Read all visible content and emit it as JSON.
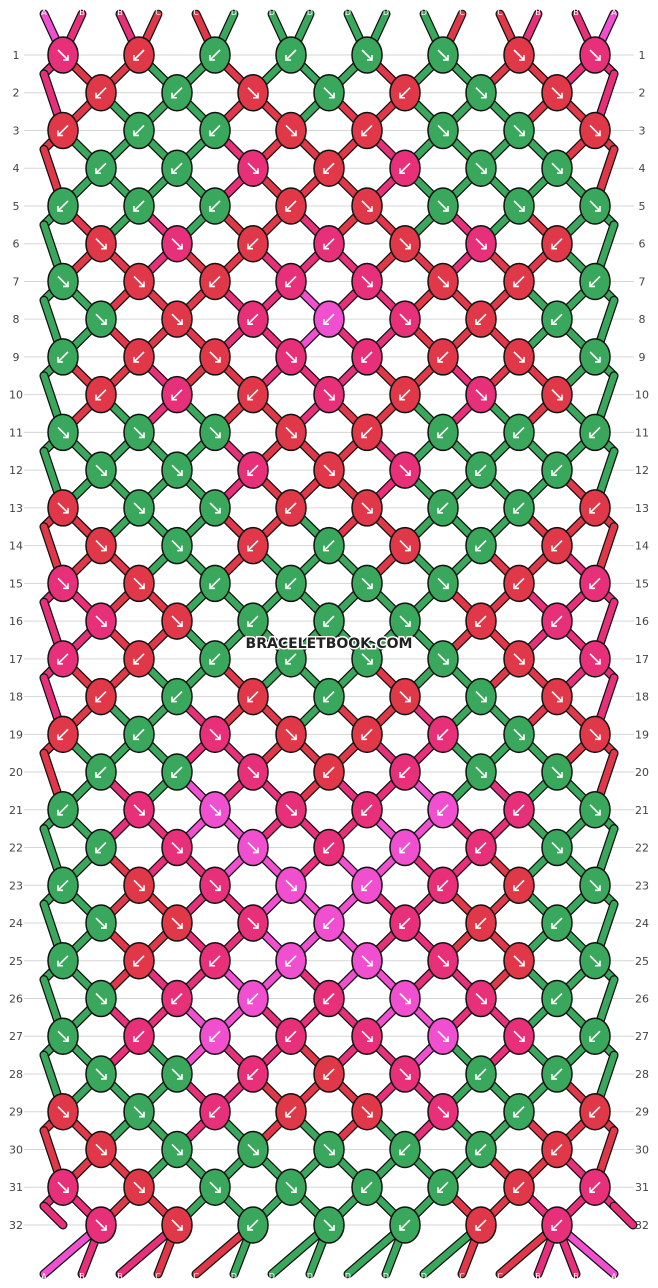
{
  "watermark": "BRACELETBOOK.COM",
  "colors": {
    "A": "#f050d0",
    "B": "#e8307a",
    "C": "#e03848",
    "D": "#3aa85c",
    "outline": "#111111",
    "grid": "#d6d6d6"
  },
  "strands": [
    "A",
    "B",
    "B",
    "C",
    "C",
    "D",
    "D",
    "D",
    "D",
    "D",
    "D",
    "C",
    "C",
    "B",
    "B",
    "A"
  ],
  "rows": [
    {
      "n": "1",
      "knots": [
        [
          "B",
          "br"
        ],
        [
          "C",
          "bl"
        ],
        [
          "D",
          "bl"
        ],
        [
          "D",
          "bl"
        ],
        [
          "D",
          "br"
        ],
        [
          "D",
          "br"
        ],
        [
          "C",
          "br"
        ],
        [
          "B",
          "br"
        ]
      ]
    },
    {
      "n": "2",
      "knots": [
        [
          "C",
          "bl"
        ],
        [
          "D",
          "bl"
        ],
        [
          "C",
          "br"
        ],
        [
          "D",
          "br"
        ],
        [
          "C",
          "bl"
        ],
        [
          "D",
          "br"
        ],
        [
          "C",
          "br"
        ]
      ]
    },
    {
      "n": "3",
      "knots": [
        [
          "C",
          "bl"
        ],
        [
          "D",
          "bl"
        ],
        [
          "D",
          "bl"
        ],
        [
          "C",
          "br"
        ],
        [
          "C",
          "bl"
        ],
        [
          "D",
          "br"
        ],
        [
          "D",
          "br"
        ],
        [
          "C",
          "br"
        ]
      ]
    },
    {
      "n": "4",
      "knots": [
        [
          "D",
          "bl"
        ],
        [
          "D",
          "bl"
        ],
        [
          "B",
          "br"
        ],
        [
          "C",
          "bl"
        ],
        [
          "B",
          "bl"
        ],
        [
          "D",
          "br"
        ],
        [
          "D",
          "br"
        ]
      ]
    },
    {
      "n": "5",
      "knots": [
        [
          "D",
          "bl"
        ],
        [
          "D",
          "bl"
        ],
        [
          "D",
          "bl"
        ],
        [
          "C",
          "bl"
        ],
        [
          "C",
          "br"
        ],
        [
          "D",
          "br"
        ],
        [
          "D",
          "br"
        ],
        [
          "D",
          "br"
        ]
      ]
    },
    {
      "n": "6",
      "knots": [
        [
          "C",
          "br"
        ],
        [
          "B",
          "br"
        ],
        [
          "C",
          "bl"
        ],
        [
          "B",
          "bl"
        ],
        [
          "C",
          "br"
        ],
        [
          "B",
          "br"
        ],
        [
          "C",
          "bl"
        ]
      ]
    },
    {
      "n": "7",
      "knots": [
        [
          "D",
          "br"
        ],
        [
          "C",
          "br"
        ],
        [
          "C",
          "bl"
        ],
        [
          "B",
          "bl"
        ],
        [
          "B",
          "br"
        ],
        [
          "C",
          "br"
        ],
        [
          "C",
          "bl"
        ],
        [
          "D",
          "bl"
        ]
      ]
    },
    {
      "n": "8",
      "knots": [
        [
          "D",
          "br"
        ],
        [
          "C",
          "br"
        ],
        [
          "B",
          "bl"
        ],
        [
          "A",
          "bl"
        ],
        [
          "B",
          "br"
        ],
        [
          "C",
          "bl"
        ],
        [
          "D",
          "bl"
        ]
      ]
    },
    {
      "n": "9",
      "knots": [
        [
          "D",
          "bl"
        ],
        [
          "C",
          "bl"
        ],
        [
          "C",
          "br"
        ],
        [
          "B",
          "br"
        ],
        [
          "B",
          "bl"
        ],
        [
          "C",
          "bl"
        ],
        [
          "C",
          "br"
        ],
        [
          "D",
          "br"
        ]
      ]
    },
    {
      "n": "10",
      "knots": [
        [
          "C",
          "bl"
        ],
        [
          "B",
          "bl"
        ],
        [
          "C",
          "bl"
        ],
        [
          "B",
          "br"
        ],
        [
          "C",
          "bl"
        ],
        [
          "B",
          "br"
        ],
        [
          "C",
          "br"
        ]
      ]
    },
    {
      "n": "11",
      "knots": [
        [
          "D",
          "br"
        ],
        [
          "D",
          "br"
        ],
        [
          "D",
          "br"
        ],
        [
          "C",
          "br"
        ],
        [
          "C",
          "bl"
        ],
        [
          "D",
          "bl"
        ],
        [
          "D",
          "bl"
        ],
        [
          "D",
          "bl"
        ]
      ]
    },
    {
      "n": "12",
      "knots": [
        [
          "D",
          "br"
        ],
        [
          "D",
          "br"
        ],
        [
          "B",
          "bl"
        ],
        [
          "C",
          "br"
        ],
        [
          "B",
          "br"
        ],
        [
          "D",
          "bl"
        ],
        [
          "D",
          "bl"
        ]
      ]
    },
    {
      "n": "13",
      "knots": [
        [
          "C",
          "br"
        ],
        [
          "D",
          "br"
        ],
        [
          "D",
          "br"
        ],
        [
          "C",
          "bl"
        ],
        [
          "C",
          "br"
        ],
        [
          "D",
          "bl"
        ],
        [
          "D",
          "bl"
        ],
        [
          "C",
          "bl"
        ]
      ]
    },
    {
      "n": "14",
      "knots": [
        [
          "C",
          "br"
        ],
        [
          "D",
          "br"
        ],
        [
          "C",
          "bl"
        ],
        [
          "D",
          "bl"
        ],
        [
          "C",
          "br"
        ],
        [
          "D",
          "bl"
        ],
        [
          "C",
          "bl"
        ]
      ]
    },
    {
      "n": "15",
      "knots": [
        [
          "B",
          "br"
        ],
        [
          "C",
          "br"
        ],
        [
          "D",
          "bl"
        ],
        [
          "D",
          "bl"
        ],
        [
          "D",
          "br"
        ],
        [
          "D",
          "br"
        ],
        [
          "C",
          "bl"
        ],
        [
          "B",
          "bl"
        ]
      ]
    },
    {
      "n": "16",
      "knots": [
        [
          "B",
          "br"
        ],
        [
          "C",
          "br"
        ],
        [
          "D",
          "bl"
        ],
        [
          "D",
          "bl"
        ],
        [
          "D",
          "br"
        ],
        [
          "C",
          "bl"
        ],
        [
          "B",
          "bl"
        ]
      ]
    },
    {
      "n": "17",
      "knots": [
        [
          "B",
          "bl"
        ],
        [
          "C",
          "bl"
        ],
        [
          "D",
          "bl"
        ],
        [
          "D",
          "bl"
        ],
        [
          "D",
          "br"
        ],
        [
          "D",
          "br"
        ],
        [
          "C",
          "br"
        ],
        [
          "B",
          "br"
        ]
      ]
    },
    {
      "n": "18",
      "knots": [
        [
          "C",
          "bl"
        ],
        [
          "D",
          "bl"
        ],
        [
          "C",
          "bl"
        ],
        [
          "D",
          "bl"
        ],
        [
          "C",
          "br"
        ],
        [
          "D",
          "br"
        ],
        [
          "C",
          "br"
        ]
      ]
    },
    {
      "n": "19",
      "knots": [
        [
          "C",
          "bl"
        ],
        [
          "D",
          "bl"
        ],
        [
          "B",
          "br"
        ],
        [
          "C",
          "br"
        ],
        [
          "C",
          "bl"
        ],
        [
          "B",
          "bl"
        ],
        [
          "D",
          "br"
        ],
        [
          "C",
          "br"
        ]
      ]
    },
    {
      "n": "20",
      "knots": [
        [
          "D",
          "bl"
        ],
        [
          "D",
          "bl"
        ],
        [
          "B",
          "br"
        ],
        [
          "C",
          "bl"
        ],
        [
          "B",
          "bl"
        ],
        [
          "D",
          "br"
        ],
        [
          "D",
          "br"
        ]
      ]
    },
    {
      "n": "21",
      "knots": [
        [
          "D",
          "bl"
        ],
        [
          "B",
          "br"
        ],
        [
          "A",
          "br"
        ],
        [
          "B",
          "br"
        ],
        [
          "B",
          "bl"
        ],
        [
          "A",
          "bl"
        ],
        [
          "B",
          "bl"
        ],
        [
          "D",
          "br"
        ]
      ]
    },
    {
      "n": "22",
      "knots": [
        [
          "D",
          "bl"
        ],
        [
          "B",
          "br"
        ],
        [
          "A",
          "br"
        ],
        [
          "B",
          "bl"
        ],
        [
          "A",
          "bl"
        ],
        [
          "B",
          "bl"
        ],
        [
          "D",
          "br"
        ]
      ]
    },
    {
      "n": "23",
      "knots": [
        [
          "D",
          "bl"
        ],
        [
          "C",
          "br"
        ],
        [
          "B",
          "br"
        ],
        [
          "A",
          "br"
        ],
        [
          "A",
          "bl"
        ],
        [
          "B",
          "bl"
        ],
        [
          "C",
          "bl"
        ],
        [
          "D",
          "br"
        ]
      ]
    },
    {
      "n": "24",
      "knots": [
        [
          "D",
          "br"
        ],
        [
          "C",
          "br"
        ],
        [
          "B",
          "br"
        ],
        [
          "A",
          "bl"
        ],
        [
          "B",
          "bl"
        ],
        [
          "C",
          "bl"
        ],
        [
          "D",
          "bl"
        ]
      ]
    },
    {
      "n": "25",
      "knots": [
        [
          "D",
          "bl"
        ],
        [
          "C",
          "bl"
        ],
        [
          "B",
          "bl"
        ],
        [
          "A",
          "bl"
        ],
        [
          "A",
          "br"
        ],
        [
          "B",
          "br"
        ],
        [
          "C",
          "br"
        ],
        [
          "D",
          "br"
        ]
      ]
    },
    {
      "n": "26",
      "knots": [
        [
          "D",
          "br"
        ],
        [
          "B",
          "bl"
        ],
        [
          "A",
          "bl"
        ],
        [
          "B",
          "bl"
        ],
        [
          "A",
          "br"
        ],
        [
          "B",
          "br"
        ],
        [
          "D",
          "bl"
        ]
      ]
    },
    {
      "n": "27",
      "knots": [
        [
          "D",
          "br"
        ],
        [
          "B",
          "bl"
        ],
        [
          "A",
          "bl"
        ],
        [
          "B",
          "bl"
        ],
        [
          "B",
          "br"
        ],
        [
          "A",
          "br"
        ],
        [
          "B",
          "br"
        ],
        [
          "D",
          "bl"
        ]
      ]
    },
    {
      "n": "28",
      "knots": [
        [
          "D",
          "br"
        ],
        [
          "D",
          "br"
        ],
        [
          "B",
          "bl"
        ],
        [
          "C",
          "bl"
        ],
        [
          "B",
          "br"
        ],
        [
          "D",
          "bl"
        ],
        [
          "D",
          "bl"
        ]
      ]
    },
    {
      "n": "29",
      "knots": [
        [
          "C",
          "br"
        ],
        [
          "D",
          "br"
        ],
        [
          "B",
          "bl"
        ],
        [
          "C",
          "bl"
        ],
        [
          "C",
          "br"
        ],
        [
          "B",
          "br"
        ],
        [
          "D",
          "bl"
        ],
        [
          "C",
          "bl"
        ]
      ]
    },
    {
      "n": "30",
      "knots": [
        [
          "C",
          "br"
        ],
        [
          "D",
          "br"
        ],
        [
          "D",
          "br"
        ],
        [
          "D",
          "br"
        ],
        [
          "D",
          "bl"
        ],
        [
          "D",
          "bl"
        ],
        [
          "C",
          "bl"
        ]
      ]
    },
    {
      "n": "31",
      "knots": [
        [
          "B",
          "br"
        ],
        [
          "C",
          "br"
        ],
        [
          "D",
          "br"
        ],
        [
          "D",
          "br"
        ],
        [
          "D",
          "bl"
        ],
        [
          "D",
          "bl"
        ],
        [
          "C",
          "bl"
        ],
        [
          "B",
          "bl"
        ]
      ]
    },
    {
      "n": "32",
      "knots": [
        [
          "B",
          "br"
        ],
        [
          "C",
          "br"
        ],
        [
          "D",
          "bl"
        ],
        [
          "D",
          "br"
        ],
        [
          "D",
          "bl"
        ],
        [
          "C",
          "bl"
        ],
        [
          "B",
          "bl"
        ]
      ]
    }
  ]
}
